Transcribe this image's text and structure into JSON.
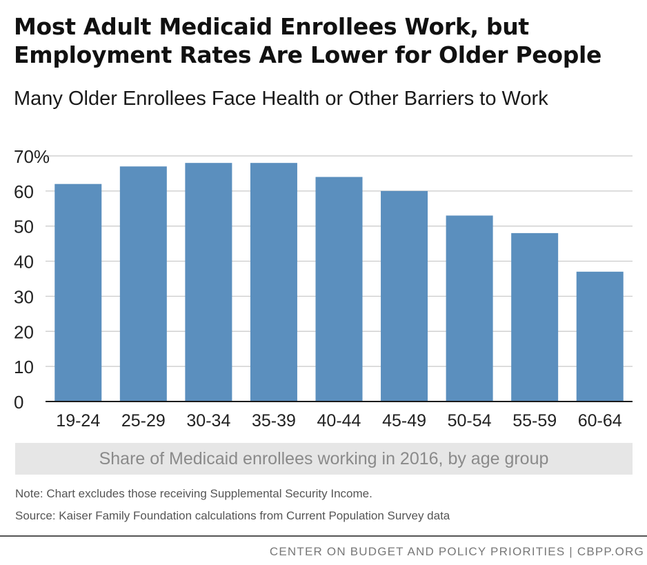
{
  "chart_data": {
    "type": "bar",
    "title": "Most Adult Medicaid Enrollees Work, but Employment Rates Are Lower for Older People",
    "subtitle": "Many Older Enrollees Face Health or Other Barriers to Work",
    "categories": [
      "19-24",
      "25-29",
      "30-34",
      "35-39",
      "40-44",
      "45-49",
      "50-54",
      "55-59",
      "60-64"
    ],
    "values": [
      62,
      67,
      68,
      68,
      64,
      60,
      53,
      48,
      37
    ],
    "y_ticks": [
      0,
      10,
      20,
      30,
      40,
      50,
      60,
      70
    ],
    "y_tick_labels": [
      "0",
      "10",
      "20",
      "30",
      "40",
      "50",
      "60",
      "70%"
    ],
    "ylim": [
      0,
      70
    ],
    "grid": true,
    "bar_color": "#5b8fbe",
    "xlabel": "Share of Medicaid enrollees working in 2016, by age group"
  },
  "note": "Note: Chart excludes those receiving Supplemental Security Income.",
  "source": "Source: Kaiser Family Foundation calculations from Current Population Survey data",
  "footer": "CENTER ON BUDGET AND POLICY PRIORITIES | CBPP.ORG"
}
